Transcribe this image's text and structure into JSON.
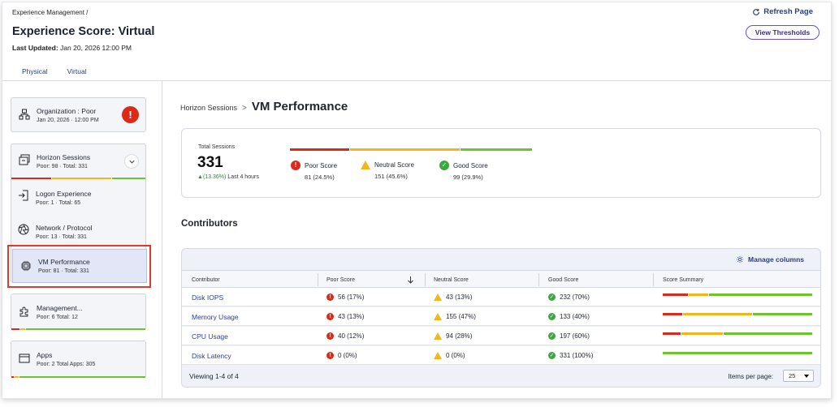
{
  "header": {
    "breadcrumb": "Experience Management  /",
    "title": "Experience Score: Virtual",
    "updated_label": "Last Updated:",
    "updated_value": "Jan 20, 2026 12:00 PM",
    "refresh_label": "Refresh Page",
    "thresholds_label": "View Thresholds",
    "tabs": [
      {
        "label": "Physical",
        "active": false
      },
      {
        "label": "Virtual",
        "active": true
      }
    ]
  },
  "sidebar": {
    "organization": {
      "name": "Organization : Poor",
      "sub": "Jan 20, 2026 · 12:00 PM",
      "alert": "!"
    },
    "horizon": {
      "name": "Horizon Sessions",
      "sub": "Poor: 98 · Total: 331",
      "segments": [
        0.3,
        0.45,
        0.25
      ]
    },
    "logon": {
      "name": "Logon Experience",
      "sub": "Poor: 1 · Total: 65"
    },
    "network": {
      "name": "Network / Protocol",
      "sub": "Poor: 13 · Total: 331"
    },
    "vm": {
      "name": "VM Performance",
      "sub": "Poor: 81 · Total: 331"
    },
    "management": {
      "name": "Management...",
      "sub": "Poor: 6  Total: 12",
      "segments": [
        0.06,
        0.04,
        0.9
      ]
    },
    "apps": {
      "name": "Apps",
      "sub": "Poor: 2  Total Apps: 305",
      "segments": [
        0.02,
        0.03,
        0.95
      ]
    }
  },
  "main": {
    "breadcrumb_parent": "Horizon Sessions",
    "breadcrumb_sep": ">",
    "page_title": "VM Performance",
    "summary": {
      "total_label": "Total Sessions",
      "total_value": "331",
      "change": "(13.36%)",
      "change_suffix": "Last 4 hours",
      "legend": [
        {
          "label": "Poor Score",
          "value": "81 (24.5%)",
          "fraction": 0.245
        },
        {
          "label": "Neutral Score",
          "value": "151 (45.6%)",
          "fraction": 0.456
        },
        {
          "label": "Good Score",
          "value": "99 (29.9%)",
          "fraction": 0.299
        }
      ]
    },
    "contributors_title": "Contributors",
    "manage_columns": "Manage columns",
    "columns": [
      "Contributor",
      "Poor Score",
      "Neutral Score",
      "Good Score",
      "Score Summary"
    ],
    "rows": [
      {
        "name": "Disk IOPS",
        "poor": "56 (17%)",
        "neutral": "43 (13%)",
        "good": "232 (70%)",
        "fractions": [
          0.17,
          0.13,
          0.7
        ]
      },
      {
        "name": "Memory Usage",
        "poor": "43 (13%)",
        "neutral": "155 (47%)",
        "good": "133 (40%)",
        "fractions": [
          0.13,
          0.47,
          0.4
        ]
      },
      {
        "name": "CPU Usage",
        "poor": "40 (12%)",
        "neutral": "94 (28%)",
        "good": "197 (60%)",
        "fractions": [
          0.12,
          0.28,
          0.6
        ]
      },
      {
        "name": "Disk Latency",
        "poor": "0 (0%)",
        "neutral": "0 (0%)",
        "good": "331 (100%)",
        "fractions": [
          0,
          0,
          1
        ]
      }
    ],
    "footer": {
      "viewing": "Viewing 1-4 of 4",
      "items_per_page_label": "Items per page:",
      "items_per_page_value": "25"
    }
  },
  "colors": {
    "poor": "#dc2a1a",
    "neutral": "#f2b51c",
    "good": "#6cc52c",
    "accent": "#2c3e7a"
  }
}
